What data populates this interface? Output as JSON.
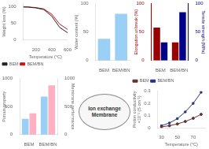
{
  "chart_data": [
    {
      "type": "line",
      "x": [
        40,
        100,
        200,
        300,
        400,
        500,
        600
      ],
      "series": [
        {
          "name": "BEM",
          "color": "#222222",
          "values": [
            100,
            99.5,
            97,
            92,
            72,
            38,
            22
          ]
        },
        {
          "name": "BEM/BN",
          "color": "#cc1111",
          "values": [
            100,
            100,
            98,
            94,
            78,
            48,
            32
          ]
        }
      ],
      "xlabel": "Temperature (°C)",
      "ylabel": "Weight loss (%)",
      "xlim": [
        40,
        600
      ],
      "xticks": [
        200,
        400,
        600
      ],
      "ylim": [
        0,
        110
      ],
      "yticks": [
        0,
        50,
        100
      ],
      "grid": false,
      "legend": "lower left"
    },
    {
      "type": "bar",
      "categories": [
        "BEM",
        "BEM/BN"
      ],
      "values": [
        38,
        82
      ],
      "ylabel": "Water content (%)",
      "ylim": [
        0,
        100
      ],
      "yticks": [
        0,
        50,
        100
      ],
      "grid": false
    },
    {
      "type": "bar",
      "categories": [
        "BEM",
        "BEM/BN"
      ],
      "series": [
        {
          "color": "#990000",
          "values": [
            58,
            32
          ]
        },
        {
          "color": "#000088",
          "axis": "y2",
          "values": [
            32,
            85
          ]
        }
      ],
      "ylabel": "Elongation at break (%)",
      "y2label": "Tensile strength (MPa)",
      "ylim": [
        0,
        100
      ],
      "yticks": [
        0,
        50,
        100
      ],
      "y2lim": [
        0,
        100
      ],
      "y2ticks": [
        0,
        50,
        100
      ],
      "grid": false
    },
    {
      "type": "bar",
      "categories": [
        "BEM",
        "BEM/BN"
      ],
      "series": [
        {
          "values": [
            280,
            680
          ]
        },
        {
          "axis": "y2",
          "values": [
            380,
            880
          ]
        }
      ],
      "ylabel": "Porous property",
      "y2label": "Membrane performance",
      "ylim": [
        0,
        1000
      ],
      "yticks": [
        0,
        500,
        1000
      ],
      "y2lim": [
        0,
        1000
      ],
      "y2ticks": [
        0,
        500,
        1000
      ],
      "grid": false
    },
    {
      "type": "line",
      "x": [
        30,
        40,
        50,
        60,
        70,
        80
      ],
      "series": [
        {
          "name": "BEM",
          "color": "#663333",
          "marker": "circle",
          "values": [
            0.008,
            0.018,
            0.032,
            0.052,
            0.078,
            0.11
          ]
        },
        {
          "name": "BEM/BN",
          "color": "#223388",
          "marker": "square",
          "values": [
            0.018,
            0.04,
            0.075,
            0.13,
            0.2,
            0.29
          ]
        }
      ],
      "xlabel": "Temperature (°C)",
      "ylabel": "Proton conductivity\n×10⁻¹ (S cm⁻¹)",
      "xlim": [
        25,
        85
      ],
      "xticks": [
        30,
        50,
        70
      ],
      "ylim": [
        0,
        0.3
      ],
      "yticks": [
        0,
        0.1,
        0.2,
        0.3
      ],
      "grid": false,
      "legend": "upper left"
    },
    {
      "type": "text",
      "annotations": [
        "Ion exchange",
        "Membrane"
      ]
    }
  ]
}
